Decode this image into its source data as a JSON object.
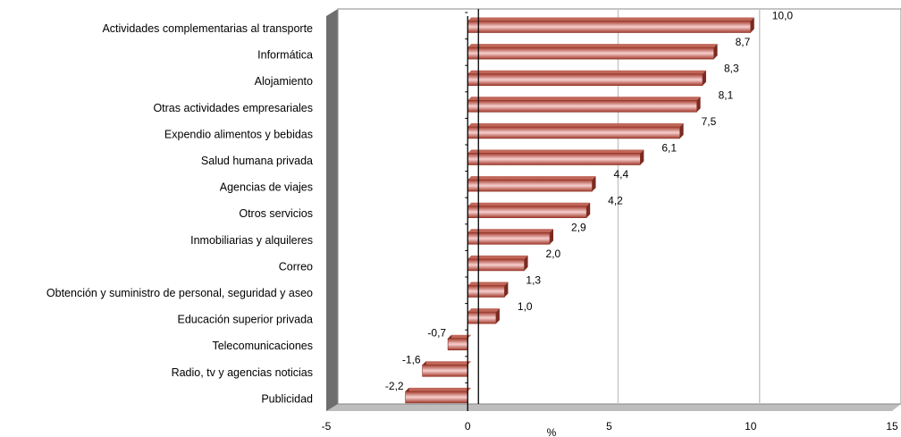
{
  "chart_data": {
    "type": "bar",
    "orientation": "horizontal",
    "categories": [
      "Actividades complementarias al transporte",
      "Informática",
      "Alojamiento",
      "Otras actividades empresariales",
      "Expendio alimentos y bebidas",
      "Salud humana privada",
      "Agencias de viajes",
      "Otros servicios",
      "Inmobiliarias y alquileres",
      "Correo",
      "Obtención y suministro de personal, seguridad y aseo",
      "Educación superior privada",
      "Telecomunicaciones",
      "Radio, tv y agencias noticias",
      "Publicidad"
    ],
    "values": [
      10.0,
      8.7,
      8.3,
      8.1,
      7.5,
      6.1,
      4.4,
      4.2,
      2.9,
      2.0,
      1.3,
      1.0,
      -0.7,
      -1.6,
      -2.2
    ],
    "value_labels": [
      "10,0",
      "8,7",
      "8,3",
      "8,1",
      "7,5",
      "6,1",
      "4,4",
      "4,2",
      "2,9",
      "2,0",
      "1,3",
      "1,0",
      "-0,7",
      "-1,6",
      "-2,2"
    ],
    "xlabel": "%",
    "xlim": [
      -5,
      15
    ],
    "xticks": [
      -5,
      0,
      5,
      10,
      15
    ],
    "xtick_labels": [
      "-5",
      "0",
      "5",
      "10",
      "15"
    ],
    "grid": "vertical",
    "legend": "none",
    "bar_color": "#a33a2c",
    "bar_highlight_color": "#f7d0cf",
    "grid_color": "#c8c8c8",
    "wall_color": "#6e6e6e"
  }
}
